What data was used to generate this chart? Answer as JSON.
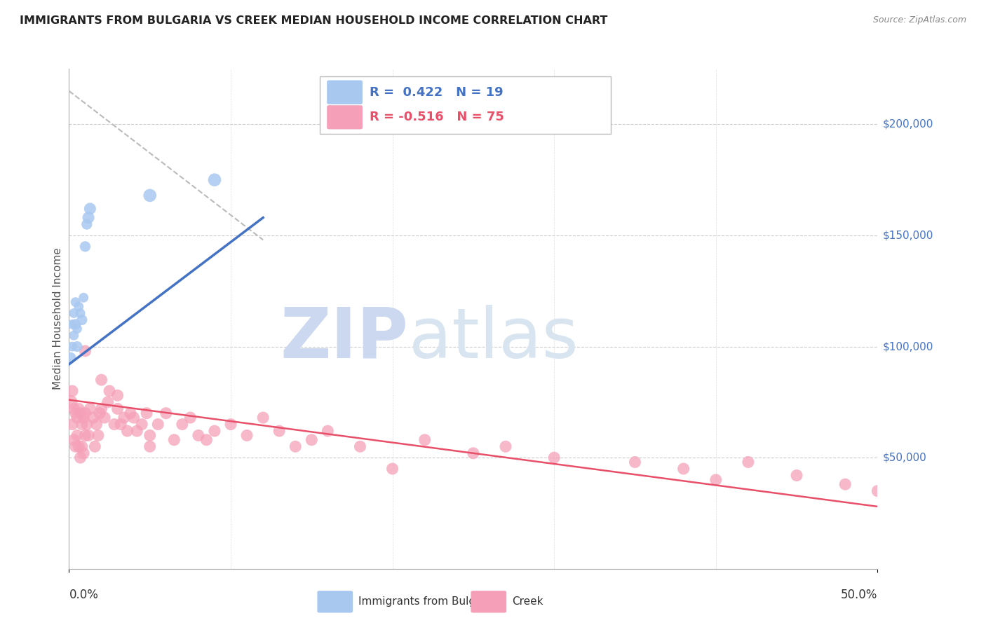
{
  "title": "IMMIGRANTS FROM BULGARIA VS CREEK MEDIAN HOUSEHOLD INCOME CORRELATION CHART",
  "source": "Source: ZipAtlas.com",
  "ylabel": "Median Household Income",
  "ylim": [
    0,
    225000
  ],
  "xlim": [
    0.0,
    0.5
  ],
  "legend_blue_r": "R =  0.422",
  "legend_blue_n": "N = 19",
  "legend_pink_r": "R = -0.516",
  "legend_pink_n": "N = 75",
  "blue_color": "#a8c8f0",
  "pink_color": "#f5a0b8",
  "blue_line_color": "#4472c4",
  "pink_line_color": "#e8506a",
  "watermark_zip": "ZIP",
  "watermark_atlas": "atlas",
  "watermark_color": "#ccd8f0",
  "ytick_values": [
    50000,
    100000,
    150000,
    200000
  ],
  "ytick_labels": [
    "$50,000",
    "$100,000",
    "$150,000",
    "$200,000"
  ],
  "blue_scatter_x": [
    0.001,
    0.002,
    0.002,
    0.003,
    0.003,
    0.004,
    0.004,
    0.005,
    0.005,
    0.006,
    0.007,
    0.008,
    0.009,
    0.01,
    0.011,
    0.012,
    0.013,
    0.05,
    0.09
  ],
  "blue_scatter_y": [
    95000,
    100000,
    110000,
    105000,
    115000,
    110000,
    120000,
    100000,
    108000,
    118000,
    115000,
    112000,
    122000,
    145000,
    155000,
    158000,
    162000,
    168000,
    175000
  ],
  "blue_scatter_size": [
    120,
    100,
    100,
    100,
    100,
    120,
    100,
    120,
    100,
    100,
    100,
    120,
    100,
    120,
    120,
    150,
    150,
    180,
    180
  ],
  "pink_scatter_x": [
    0.001,
    0.002,
    0.002,
    0.003,
    0.003,
    0.004,
    0.004,
    0.005,
    0.005,
    0.006,
    0.006,
    0.007,
    0.007,
    0.008,
    0.008,
    0.009,
    0.009,
    0.01,
    0.01,
    0.011,
    0.012,
    0.013,
    0.015,
    0.016,
    0.017,
    0.018,
    0.019,
    0.02,
    0.022,
    0.024,
    0.025,
    0.028,
    0.03,
    0.032,
    0.034,
    0.036,
    0.038,
    0.04,
    0.042,
    0.045,
    0.048,
    0.05,
    0.055,
    0.06,
    0.065,
    0.07,
    0.075,
    0.08,
    0.085,
    0.09,
    0.1,
    0.11,
    0.12,
    0.13,
    0.14,
    0.15,
    0.16,
    0.18,
    0.2,
    0.22,
    0.25,
    0.27,
    0.3,
    0.35,
    0.38,
    0.4,
    0.42,
    0.45,
    0.48,
    0.5,
    0.52,
    0.01,
    0.02,
    0.03,
    0.05
  ],
  "pink_scatter_y": [
    75000,
    80000,
    65000,
    72000,
    58000,
    70000,
    55000,
    68000,
    60000,
    72000,
    55000,
    70000,
    50000,
    65000,
    55000,
    68000,
    52000,
    70000,
    60000,
    65000,
    60000,
    72000,
    68000,
    55000,
    65000,
    60000,
    70000,
    72000,
    68000,
    75000,
    80000,
    65000,
    72000,
    65000,
    68000,
    62000,
    70000,
    68000,
    62000,
    65000,
    70000,
    60000,
    65000,
    70000,
    58000,
    65000,
    68000,
    60000,
    58000,
    62000,
    65000,
    60000,
    68000,
    62000,
    55000,
    58000,
    62000,
    55000,
    45000,
    58000,
    52000,
    55000,
    50000,
    48000,
    45000,
    40000,
    48000,
    42000,
    38000,
    35000,
    32000,
    98000,
    85000,
    78000,
    55000
  ],
  "pink_scatter_size": [
    200,
    150,
    150,
    150,
    150,
    150,
    150,
    150,
    150,
    150,
    150,
    150,
    150,
    150,
    150,
    150,
    150,
    150,
    150,
    150,
    150,
    150,
    150,
    150,
    150,
    150,
    150,
    150,
    150,
    150,
    150,
    150,
    150,
    150,
    150,
    150,
    150,
    150,
    150,
    150,
    150,
    150,
    150,
    150,
    150,
    150,
    150,
    150,
    150,
    150,
    150,
    150,
    150,
    150,
    150,
    150,
    150,
    150,
    150,
    150,
    150,
    150,
    150,
    150,
    150,
    150,
    150,
    150,
    150,
    150,
    150,
    150,
    150,
    150,
    150
  ],
  "blue_line_x0": 0.0,
  "blue_line_x1": 0.12,
  "blue_line_y0": 92000,
  "blue_line_y1": 158000,
  "pink_line_x0": 0.0,
  "pink_line_x1": 0.5,
  "pink_line_y0": 76000,
  "pink_line_y1": 28000,
  "dashed_line_x0": 0.0,
  "dashed_line_x1": 0.12,
  "dashed_line_y0": 215000,
  "dashed_line_y1": 148000
}
